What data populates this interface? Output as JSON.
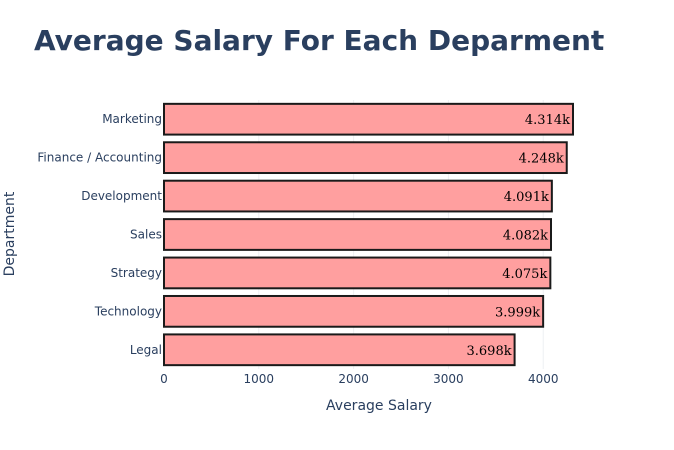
{
  "chart_data": {
    "type": "bar",
    "orientation": "horizontal",
    "title": "Average Salary For Each Deparment",
    "xlabel": "Average Salary",
    "ylabel": "Department",
    "categories": [
      "Marketing",
      "Finance / Accounting",
      "Development",
      "Sales",
      "Strategy",
      "Technology",
      "Legal"
    ],
    "values": [
      4314,
      4248,
      4091,
      4082,
      4075,
      3999,
      3698
    ],
    "value_labels": [
      "4.314k",
      "4.248k",
      "4.091k",
      "4.082k",
      "4.075k",
      "3.999k",
      "3.698k"
    ],
    "xlim": [
      0,
      4314
    ],
    "xticks": [
      0,
      1000,
      2000,
      3000,
      4000
    ],
    "xtick_labels": [
      "0",
      "1000",
      "2000",
      "3000",
      "4000"
    ],
    "grid": true,
    "colors": {
      "bar_fill": "#ff9f9f",
      "bar_outline": "#1a1a1a",
      "text": "#2a3f5f",
      "grid": "#eef0f3"
    }
  }
}
